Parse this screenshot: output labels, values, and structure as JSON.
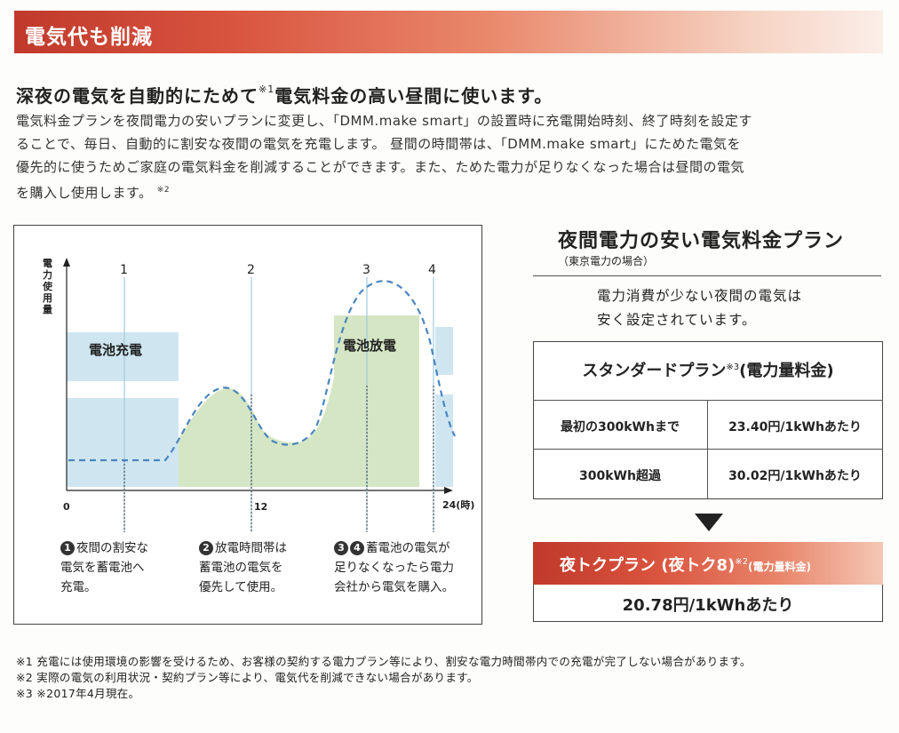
{
  "header": {
    "title": "電気代も削減"
  },
  "headline": {
    "pre": "深夜の電気を自動的にためて",
    "mark": "※1",
    "post": "電気料金の高い昼間に使います。"
  },
  "intro": {
    "lines": [
      "電気料金プランを夜間電力の安いプランに変更し、「DMM.make smart」の設置時に充電開始時刻、終了時刻を設定す",
      "ることで、毎日、自動的に割安な夜間の電気を充電します。 昼間の時間帯は、「DMM.make smart」にためた電気を",
      "優先的に使うためご家庭の電気料金を削減することができます。また、ためた電力が足りなくなった場合は昼間の電気",
      "を購入し使用します。"
    ],
    "mark": "※2"
  },
  "chart_data": {
    "type": "area",
    "ylabel": "電力使用量",
    "x_ticks": [
      "0",
      "12",
      "24(時)"
    ],
    "markers": [
      "1",
      "2",
      "3",
      "4"
    ],
    "regions": [
      {
        "label": "電池充電",
        "color": "#cfe6f1"
      },
      {
        "label": "電池放電",
        "color": "#d5e6c4"
      }
    ],
    "series_color": "#4a86c0"
  },
  "steps": [
    {
      "nums": [
        "1"
      ],
      "lines": [
        "夜間の割安な",
        "電気を蓄電池へ",
        "充電。"
      ]
    },
    {
      "nums": [
        "2"
      ],
      "lines": [
        "放電時間帯は",
        "蓄電池の電気を",
        "優先して使用。"
      ]
    },
    {
      "nums": [
        "3",
        "4"
      ],
      "lines": [
        "蓄電池の電気が",
        "足りなくなったら電力",
        "会社から電気を購入。"
      ]
    }
  ],
  "plan": {
    "title": "夜間電力の安い電気料金プラン",
    "subtitle": "（東京電力の場合）",
    "desc": [
      "電力消費が少ない夜間の電気は",
      "安く設定されています。"
    ]
  },
  "standard": {
    "title": "スタンダードプラン",
    "mark": "※3",
    "suffix": "(電力量料金)",
    "rows": [
      {
        "label": "最初の300kWhまで",
        "price": "23.40円/1kWhあたり"
      },
      {
        "label": "300kWh超過",
        "price": "30.02円/1kWhあたり"
      }
    ]
  },
  "night": {
    "title": "夜トクプラン (夜トク8)",
    "mark": "※2",
    "suffix": "(電力量料金)",
    "price": "20.78円/1kWhあたり"
  },
  "footnotes": [
    "※1 充電には使用環境の影響を受けるため、お客様の契約する電力プラン等により、割安な電力時間帯内での充電が完了しない場合があります。",
    "※2 実際の電気の利用状況・契約プラン等により、電気代を削減できない場合があります。",
    "※3 ※2017年4月現在。"
  ]
}
